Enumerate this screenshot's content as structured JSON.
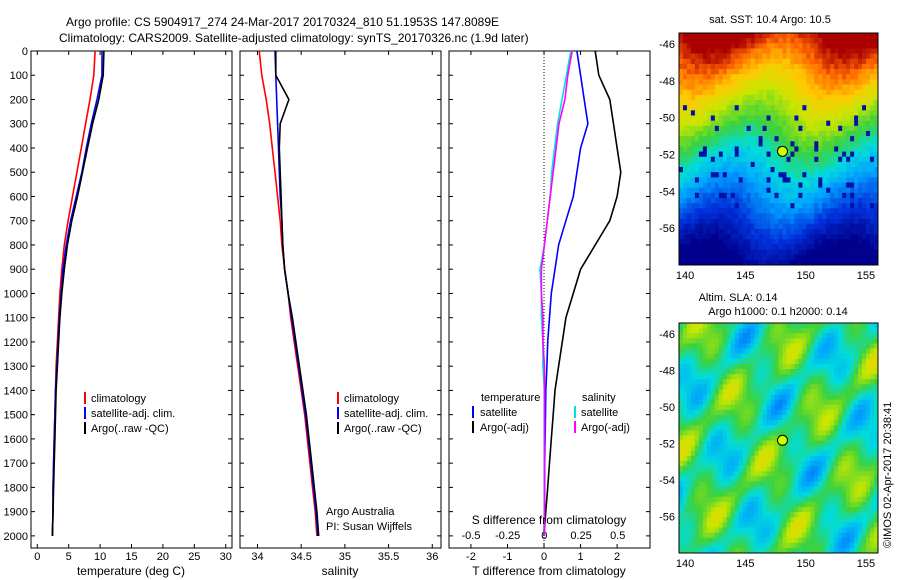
{
  "header": {
    "line1": "Argo profile: CS 5904917_274 24-Mar-2017 20170324_810 51.1953S 147.8089E",
    "line2": "Climatology: CARS2009. Satellite-adjusted climatology: synTS_20170326.nc (1.9d later)"
  },
  "colors": {
    "climatology": "#ff0000",
    "satellite": "#0000ff",
    "argo": "#000000",
    "sal_satellite": "#00e0e0",
    "sal_argo": "#ff00ff"
  },
  "depth_ticks": [
    0,
    100,
    200,
    300,
    400,
    500,
    600,
    700,
    800,
    900,
    1000,
    1100,
    1200,
    1300,
    1400,
    1500,
    1600,
    1700,
    1800,
    1900,
    2000
  ],
  "panels": {
    "temperature": {
      "xlabel": "temperature (deg C)",
      "xticks": [
        "0",
        "5",
        "10",
        "15",
        "20",
        "25",
        "30"
      ],
      "legend": [
        "climatology",
        "satellite-adj. clim.",
        "Argo(..raw -QC)"
      ]
    },
    "salinity": {
      "xlabel": "salinity",
      "xticks": [
        "34",
        "34.5",
        "35",
        "35.5",
        "36"
      ],
      "legend": [
        "climatology",
        "satellite-adj. clim.",
        "Argo(..raw -QC)"
      ],
      "note1": "Argo Australia",
      "note2": "PI: Susan Wijffels"
    },
    "difference": {
      "xlabel": "T difference from climatology",
      "s_axis_label": "S difference from climatology",
      "t_xticks": [
        "-2",
        "-1",
        "0",
        "1",
        "2"
      ],
      "s_xticks": [
        "-0.5",
        "-0.25",
        "0",
        "0.25",
        "0.5"
      ],
      "legend_temp_title": "temperature",
      "legend_sal_title": "salinity",
      "legend_items": [
        "satellite",
        "Argo(-adj)",
        "satellite",
        "Argo(-adj)"
      ]
    }
  },
  "maps": {
    "sst_title": "sat. SST: 10.4  Argo: 10.5",
    "sla_title1": "Altim. SLA: 0.14",
    "sla_title2": "Argo h1000: 0.1  h2000: 0.14",
    "lat_ticks": [
      "-46",
      "-48",
      "-50",
      "-52",
      "-54",
      "-56"
    ],
    "lon_ticks": [
      "140",
      "145",
      "150",
      "155"
    ],
    "credit": "©IMOS 02-Apr-2017 20:38:41"
  },
  "chart_data": [
    {
      "type": "line",
      "title": "",
      "xlabel": "temperature (deg C)",
      "ylabel": "",
      "xlim": [
        -1,
        31
      ],
      "ylim": [
        2050,
        0
      ],
      "series": [
        {
          "name": "climatology",
          "x": [
            9.2,
            9.0,
            8.4,
            7.7,
            7.0,
            6.3,
            5.6,
            4.9,
            4.3,
            3.9,
            3.6,
            3.4,
            3.2,
            3.0,
            2.9,
            2.8,
            2.7,
            2.6,
            2.5,
            2.5,
            2.4
          ],
          "y": [
            0,
            100,
            200,
            300,
            400,
            500,
            600,
            700,
            800,
            900,
            1000,
            1100,
            1200,
            1300,
            1400,
            1500,
            1600,
            1700,
            1800,
            1900,
            2000
          ]
        },
        {
          "name": "satellite-adj. clim.",
          "x": [
            10.3,
            10.3,
            9.5,
            8.6,
            7.8,
            7.1,
            6.2,
            5.3,
            4.6,
            4.1,
            3.8,
            3.5,
            3.3,
            3.1,
            2.9,
            2.8,
            2.7,
            2.6,
            2.5,
            2.5,
            2.4
          ],
          "y": [
            0,
            100,
            200,
            300,
            400,
            500,
            600,
            700,
            800,
            900,
            1000,
            1100,
            1200,
            1300,
            1400,
            1500,
            1600,
            1700,
            1800,
            1900,
            2000
          ]
        },
        {
          "name": "Argo(..raw -QC)",
          "x": [
            10.6,
            10.5,
            9.8,
            8.8,
            8.0,
            7.2,
            6.4,
            5.5,
            4.8,
            4.3,
            3.9,
            3.6,
            3.4,
            3.2,
            3.0,
            2.9,
            2.8,
            2.7,
            2.6,
            2.5,
            2.4
          ],
          "y": [
            0,
            100,
            200,
            300,
            400,
            500,
            600,
            700,
            800,
            900,
            1000,
            1100,
            1200,
            1300,
            1400,
            1500,
            1600,
            1700,
            1800,
            1900,
            2000
          ]
        }
      ]
    },
    {
      "type": "line",
      "title": "",
      "xlabel": "salinity",
      "ylabel": "",
      "xlim": [
        33.8,
        36.1
      ],
      "ylim": [
        2050,
        0
      ],
      "series": [
        {
          "name": "climatology",
          "x": [
            34.02,
            34.05,
            34.1,
            34.14,
            34.17,
            34.2,
            34.23,
            34.26,
            34.28,
            34.31,
            34.35,
            34.38,
            34.42,
            34.46,
            34.5,
            34.54,
            34.57,
            34.6,
            34.63,
            34.66,
            34.68
          ],
          "y": [
            0,
            100,
            200,
            300,
            400,
            500,
            600,
            700,
            800,
            900,
            1000,
            1100,
            1200,
            1300,
            1400,
            1500,
            1600,
            1700,
            1800,
            1900,
            2000
          ]
        },
        {
          "name": "satellite-adj. clim.",
          "x": [
            34.2,
            34.21,
            34.22,
            34.23,
            34.24,
            34.25,
            34.26,
            34.28,
            34.29,
            34.31,
            34.35,
            34.39,
            34.43,
            34.47,
            34.51,
            34.55,
            34.58,
            34.61,
            34.64,
            34.67,
            34.69
          ],
          "y": [
            0,
            100,
            200,
            300,
            400,
            500,
            600,
            700,
            800,
            900,
            1000,
            1100,
            1200,
            1300,
            1400,
            1500,
            1600,
            1700,
            1800,
            1900,
            2000
          ]
        },
        {
          "name": "Argo(..raw -QC)",
          "x": [
            34.21,
            34.21,
            34.36,
            34.26,
            34.25,
            34.26,
            34.27,
            34.28,
            34.29,
            34.31,
            34.35,
            34.4,
            34.44,
            34.48,
            34.52,
            34.56,
            34.59,
            34.62,
            34.65,
            34.68,
            34.7
          ],
          "y": [
            0,
            100,
            200,
            300,
            400,
            500,
            600,
            700,
            800,
            900,
            1000,
            1100,
            1200,
            1300,
            1400,
            1500,
            1600,
            1700,
            1800,
            1900,
            2000
          ]
        }
      ]
    },
    {
      "type": "line",
      "title": "",
      "xlabel": "T difference from climatology",
      "ylabel": "",
      "xlim": [
        -2.6,
        2.9
      ],
      "ylim": [
        2050,
        0
      ],
      "series": [
        {
          "name": "satellite",
          "x": [
            0.9,
            1.0,
            1.1,
            1.2,
            1.0,
            0.9,
            0.8,
            0.6,
            0.4,
            0.3,
            0.2,
            0.15,
            0.1,
            0.08,
            0.05,
            0.04,
            0.03,
            0.02,
            0.02,
            0.01,
            0.0
          ],
          "y": [
            0,
            100,
            200,
            300,
            400,
            500,
            600,
            700,
            800,
            900,
            1000,
            1100,
            1200,
            1300,
            1400,
            1500,
            1600,
            1700,
            1800,
            1900,
            2000
          ]
        },
        {
          "name": "Argo(-adj)",
          "x": [
            1.4,
            1.5,
            1.8,
            1.9,
            2.0,
            2.1,
            2.0,
            1.8,
            1.4,
            1.0,
            0.8,
            0.6,
            0.5,
            0.4,
            0.3,
            0.25,
            0.2,
            0.15,
            0.1,
            0.05,
            0.0
          ],
          "y": [
            0,
            100,
            200,
            300,
            400,
            500,
            600,
            700,
            800,
            900,
            1000,
            1100,
            1200,
            1300,
            1400,
            1500,
            1600,
            1700,
            1800,
            1900,
            2000
          ]
        }
      ]
    },
    {
      "type": "line",
      "title": "",
      "xlabel": "S difference from climatology",
      "ylabel": "",
      "xlim": [
        -0.65,
        0.72
      ],
      "ylim": [
        2050,
        0
      ],
      "series": [
        {
          "name": "satellite",
          "x": [
            0.18,
            0.15,
            0.12,
            0.09,
            0.07,
            0.05,
            0.04,
            0.02,
            0.0,
            -0.03,
            -0.02,
            -0.02,
            -0.01,
            -0.01,
            0.0,
            0.0,
            0.0,
            0.0,
            0.0,
            0.0,
            0.0
          ],
          "y": [
            0,
            100,
            200,
            300,
            400,
            500,
            600,
            700,
            800,
            900,
            1000,
            1100,
            1200,
            1300,
            1400,
            1500,
            1600,
            1700,
            1800,
            1900,
            2000
          ]
        },
        {
          "name": "Argo(-adj)",
          "x": [
            0.19,
            0.16,
            0.14,
            0.1,
            0.08,
            0.06,
            0.04,
            0.02,
            0.0,
            -0.02,
            -0.02,
            -0.01,
            -0.01,
            0.0,
            0.0,
            0.0,
            0.0,
            0.0,
            0.0,
            0.0,
            0.0
          ],
          "y": [
            0,
            100,
            200,
            300,
            400,
            500,
            600,
            700,
            800,
            900,
            1000,
            1100,
            1200,
            1300,
            1400,
            1500,
            1600,
            1700,
            1800,
            1900,
            2000
          ]
        }
      ]
    }
  ]
}
